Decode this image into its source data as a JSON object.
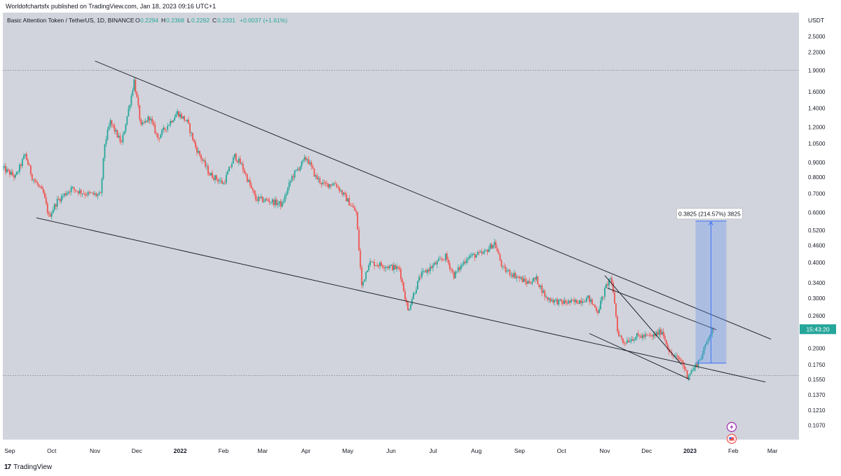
{
  "publisher_line": "Worldofchartsfx published on TradingView.com, Jan 18, 2023 09:16 UTC+1",
  "footer_brand": "TradingView",
  "colors": {
    "plot_background": "#d1d4dc",
    "up_candle": "#26a69a",
    "down_candle": "#ef5350",
    "trendline": "#131722",
    "measure_fill": "#5b8ef0",
    "measure_line": "#2962ff",
    "price_badge": "#26a69a",
    "text": "#131722"
  },
  "chart_data": {
    "type": "candlestick",
    "symbol_line": {
      "name": "Basic Attention Token / TetherUS, 1D, BINANCE",
      "open_label": "O",
      "open": "0.2294",
      "high_label": "H",
      "high": "0.2368",
      "low_label": "L",
      "low": "0.2292",
      "close_label": "C",
      "close": "0.2331",
      "change": "+0.0037 (+1.61%)"
    },
    "y_axis": {
      "currency": "USDT",
      "scale": "log",
      "ticks": [
        "2.5000",
        "2.2000",
        "1.9000",
        "1.6000",
        "1.4000",
        "1.2000",
        "1.0500",
        "0.9000",
        "0.8000",
        "0.7000",
        "0.6000",
        "0.5200",
        "0.4600",
        "0.4000",
        "0.3400",
        "0.3000",
        "0.2600",
        "0.2000",
        "0.1750",
        "0.1550",
        "0.1370",
        "0.1210",
        "0.1070"
      ],
      "range": [
        0.098,
        2.9
      ]
    },
    "x_axis": {
      "ticks": [
        "Sep",
        "Oct",
        "Nov",
        "Dec",
        "2022",
        "Feb",
        "Mar",
        "Apr",
        "May",
        "Jun",
        "Jul",
        "Aug",
        "Sep",
        "Oct",
        "Nov",
        "Dec",
        "2023",
        "Feb",
        "Mar"
      ],
      "bold_ticks": [
        "2022",
        "2023"
      ],
      "range": [
        "2021-08-27",
        "2023-03-20"
      ]
    },
    "last_price_badge": "15:43:20",
    "last_price": 0.2331,
    "horizontal_levels": [
      1.9,
      0.16
    ],
    "price_path": [
      [
        "2021-08-27",
        0.86
      ],
      [
        "2021-09-05",
        0.8
      ],
      [
        "2021-09-12",
        0.96
      ],
      [
        "2021-09-17",
        0.8
      ],
      [
        "2021-09-25",
        0.7
      ],
      [
        "2021-09-29",
        0.58
      ],
      [
        "2021-10-05",
        0.66
      ],
      [
        "2021-10-15",
        0.73
      ],
      [
        "2021-10-25",
        0.7
      ],
      [
        "2021-11-05",
        0.69
      ],
      [
        "2021-11-08",
        1.05
      ],
      [
        "2021-11-12",
        1.25
      ],
      [
        "2021-11-20",
        1.05
      ],
      [
        "2021-11-27",
        1.55
      ],
      [
        "2021-11-29",
        1.75
      ],
      [
        "2021-12-04",
        1.2
      ],
      [
        "2021-12-10",
        1.3
      ],
      [
        "2021-12-16",
        1.1
      ],
      [
        "2021-12-22",
        1.2
      ],
      [
        "2021-12-30",
        1.35
      ],
      [
        "2022-01-06",
        1.25
      ],
      [
        "2022-01-12",
        1.02
      ],
      [
        "2022-01-22",
        0.82
      ],
      [
        "2022-02-01",
        0.76
      ],
      [
        "2022-02-09",
        0.95
      ],
      [
        "2022-02-14",
        0.88
      ],
      [
        "2022-02-24",
        0.67
      ],
      [
        "2022-03-06",
        0.66
      ],
      [
        "2022-03-15",
        0.64
      ],
      [
        "2022-03-22",
        0.8
      ],
      [
        "2022-03-31",
        0.92
      ],
      [
        "2022-04-02",
        0.93
      ],
      [
        "2022-04-08",
        0.8
      ],
      [
        "2022-04-14",
        0.75
      ],
      [
        "2022-04-22",
        0.76
      ],
      [
        "2022-05-01",
        0.66
      ],
      [
        "2022-05-07",
        0.6
      ],
      [
        "2022-05-11",
        0.33
      ],
      [
        "2022-05-16",
        0.4
      ],
      [
        "2022-05-28",
        0.39
      ],
      [
        "2022-06-07",
        0.38
      ],
      [
        "2022-06-13",
        0.27
      ],
      [
        "2022-06-16",
        0.3
      ],
      [
        "2022-06-22",
        0.36
      ],
      [
        "2022-07-01",
        0.39
      ],
      [
        "2022-07-10",
        0.42
      ],
      [
        "2022-07-16",
        0.36
      ],
      [
        "2022-07-26",
        0.42
      ],
      [
        "2022-08-06",
        0.43
      ],
      [
        "2022-08-14",
        0.47
      ],
      [
        "2022-08-20",
        0.38
      ],
      [
        "2022-08-29",
        0.36
      ],
      [
        "2022-09-06",
        0.34
      ],
      [
        "2022-09-13",
        0.35
      ],
      [
        "2022-09-20",
        0.3
      ],
      [
        "2022-09-30",
        0.29
      ],
      [
        "2022-10-10",
        0.29
      ],
      [
        "2022-10-20",
        0.3
      ],
      [
        "2022-10-27",
        0.27
      ],
      [
        "2022-11-02",
        0.33
      ],
      [
        "2022-11-05",
        0.355
      ],
      [
        "2022-11-08",
        0.29
      ],
      [
        "2022-11-10",
        0.23
      ],
      [
        "2022-11-14",
        0.21
      ],
      [
        "2022-11-24",
        0.22
      ],
      [
        "2022-12-05",
        0.22
      ],
      [
        "2022-12-12",
        0.23
      ],
      [
        "2022-12-18",
        0.19
      ],
      [
        "2022-12-26",
        0.18
      ],
      [
        "2022-12-30",
        0.16
      ],
      [
        "2023-01-04",
        0.17
      ],
      [
        "2023-01-10",
        0.19
      ],
      [
        "2023-01-14",
        0.22
      ],
      [
        "2023-01-18",
        0.2331
      ]
    ],
    "trendlines": [
      {
        "from": [
          "2021-11-01",
          2.05
        ],
        "to": [
          "2023-02-28",
          0.215
        ]
      },
      {
        "from": [
          "2021-09-20",
          0.575
        ],
        "to": [
          "2023-02-24",
          0.152
        ]
      },
      {
        "from": [
          "2022-11-01",
          0.36
        ],
        "to": [
          "2022-12-26",
          0.175
        ]
      },
      {
        "from": [
          "2022-10-21",
          0.225
        ],
        "to": [
          "2023-01-01",
          0.155
        ]
      },
      {
        "from": [
          "2022-11-03",
          0.325
        ],
        "to": [
          "2023-01-20",
          0.232
        ]
      }
    ],
    "measure_box": {
      "from_date": "2023-01-05",
      "to_date": "2023-01-27",
      "low": 0.177,
      "high": 0.56,
      "label": "0.3825 (214.57%) 3825"
    }
  }
}
